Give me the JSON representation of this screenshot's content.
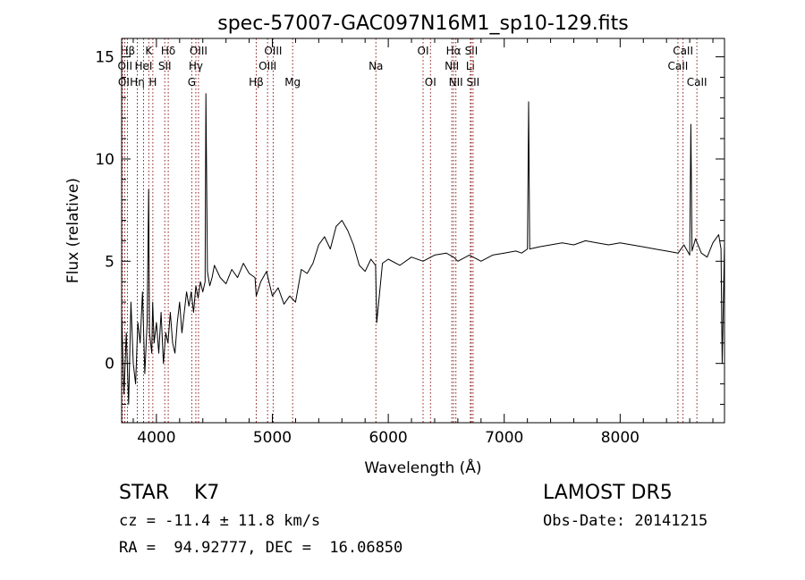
{
  "chart_data": {
    "type": "line",
    "title": "spec-57007-GAC097N16M1_sp10-129.fits",
    "xlabel": "Wavelength (Å)",
    "ylabel": "Flux (relative)",
    "xlim": [
      3700,
      8900
    ],
    "ylim": [
      -2.9,
      15.9
    ],
    "x_ticks": [
      4000,
      5000,
      6000,
      7000,
      8000
    ],
    "y_ticks": [
      0,
      5,
      10,
      15
    ],
    "grid": false,
    "series": [
      {
        "line_color": "#000000",
        "x": [
          3700,
          3720,
          3740,
          3760,
          3780,
          3800,
          3820,
          3840,
          3860,
          3880,
          3900,
          3920,
          3933,
          3940,
          3960,
          3968,
          3980,
          4000,
          4020,
          4040,
          4060,
          4080,
          4100,
          4120,
          4140,
          4160,
          4180,
          4200,
          4220,
          4240,
          4260,
          4280,
          4300,
          4320,
          4340,
          4360,
          4380,
          4400,
          4420,
          4427,
          4440,
          4460,
          4480,
          4500,
          4550,
          4600,
          4650,
          4700,
          4750,
          4800,
          4850,
          4861,
          4900,
          4950,
          5000,
          5050,
          5100,
          5150,
          5200,
          5250,
          5300,
          5350,
          5400,
          5450,
          5500,
          5550,
          5600,
          5650,
          5700,
          5750,
          5800,
          5850,
          5890,
          5900,
          5950,
          6000,
          6100,
          6200,
          6300,
          6400,
          6500,
          6563,
          6600,
          6700,
          6800,
          6900,
          7000,
          7100,
          7150,
          7200,
          7210,
          7220,
          7300,
          7400,
          7500,
          7600,
          7700,
          7800,
          7900,
          8000,
          8100,
          8200,
          8300,
          8400,
          8500,
          8550,
          8600,
          8610,
          8620,
          8650,
          8700,
          8750,
          8800,
          8850,
          8870,
          8880,
          8900
        ],
        "y": [
          2.5,
          -1.5,
          1.5,
          -2.0,
          3.0,
          0.0,
          -1.0,
          2.0,
          1.0,
          3.5,
          -0.5,
          2.0,
          8.5,
          1.5,
          0.5,
          3.0,
          1.0,
          2.0,
          0.5,
          2.5,
          0.0,
          1.5,
          1.0,
          2.5,
          1.0,
          0.5,
          2.0,
          3.0,
          1.5,
          2.5,
          3.5,
          2.8,
          3.5,
          2.5,
          3.8,
          3.2,
          4.0,
          3.5,
          4.0,
          13.2,
          4.5,
          3.8,
          4.2,
          4.8,
          4.2,
          3.9,
          4.6,
          4.2,
          4.9,
          4.4,
          4.2,
          3.3,
          4.0,
          4.5,
          3.3,
          3.7,
          2.9,
          3.3,
          3.0,
          4.6,
          4.4,
          4.9,
          5.8,
          6.2,
          5.6,
          6.7,
          7.0,
          6.5,
          5.8,
          4.8,
          4.5,
          5.1,
          4.8,
          2.0,
          4.9,
          5.1,
          4.8,
          5.2,
          5.0,
          5.3,
          5.4,
          5.2,
          5.0,
          5.3,
          5.0,
          5.3,
          5.4,
          5.5,
          5.4,
          5.6,
          12.8,
          5.6,
          5.7,
          5.8,
          5.9,
          5.8,
          6.0,
          5.9,
          5.8,
          5.9,
          5.8,
          5.7,
          5.6,
          5.5,
          5.4,
          5.8,
          5.3,
          11.7,
          5.5,
          6.1,
          5.4,
          5.2,
          5.9,
          6.3,
          5.6,
          0.0,
          5.9
        ]
      }
    ],
    "line_markers": [
      {
        "label": "Hβ",
        "x": 3750,
        "row": 0,
        "label_side": "right"
      },
      {
        "label": "OII",
        "x": 3727,
        "row": 1,
        "label_side": "right"
      },
      {
        "label": "OI",
        "x": 3707,
        "row": 2,
        "label_side": "left"
      },
      {
        "label": "Hη",
        "x": 3835,
        "row": 2,
        "label_side": "center"
      },
      {
        "label": "HeI",
        "x": 3889,
        "row": 1,
        "label_side": "center"
      },
      {
        "label": "K",
        "x": 3934,
        "row": 0,
        "label_side": "center"
      },
      {
        "label": "H",
        "x": 3969,
        "row": 2,
        "label_side": "center"
      },
      {
        "label": "Hδ",
        "x": 4102,
        "row": 0,
        "label_side": "center"
      },
      {
        "label": "SII",
        "x": 4072,
        "row": 1,
        "label_side": "center"
      },
      {
        "label": "OIII",
        "x": 4363,
        "row": 0,
        "label_side": "center"
      },
      {
        "label": "Hγ",
        "x": 4340,
        "row": 1,
        "label_side": "center"
      },
      {
        "label": "G",
        "x": 4305,
        "row": 2,
        "label_side": "center"
      },
      {
        "label": "Hβ",
        "x": 4861,
        "row": 2,
        "label_side": "center"
      },
      {
        "label": "OIII",
        "x": 5007,
        "row": 0,
        "label_side": "center"
      },
      {
        "label": "OIII",
        "x": 4959,
        "row": 1,
        "label_side": "center"
      },
      {
        "label": "Mg",
        "x": 5175,
        "row": 2,
        "label_side": "center"
      },
      {
        "label": "Na",
        "x": 5893,
        "row": 1,
        "label_side": "center"
      },
      {
        "label": "OI",
        "x": 6300,
        "row": 0,
        "label_side": "center"
      },
      {
        "label": "OI",
        "x": 6364,
        "row": 2,
        "label_side": "center"
      },
      {
        "label": "Hα",
        "x": 6563,
        "row": 0,
        "label_side": "center"
      },
      {
        "label": "NII",
        "x": 6548,
        "row": 1,
        "label_side": "center"
      },
      {
        "label": "NII",
        "x": 6583,
        "row": 2,
        "label_side": "center"
      },
      {
        "label": "SII",
        "x": 6716,
        "row": 0,
        "label_side": "center"
      },
      {
        "label": "Li",
        "x": 6708,
        "row": 1,
        "label_side": "center"
      },
      {
        "label": "SII",
        "x": 6731,
        "row": 2,
        "label_side": "center"
      },
      {
        "label": "CaII",
        "x": 8542,
        "row": 0,
        "label_side": "center"
      },
      {
        "label": "CaII",
        "x": 8498,
        "row": 1,
        "label_side": "center"
      },
      {
        "label": "CaII",
        "x": 8662,
        "row": 2,
        "label_side": "center"
      }
    ],
    "marker_color": "#8b1a1a"
  },
  "info": {
    "class_text": "STAR    K7",
    "survey_text": "LAMOST DR5",
    "cz_text": "cz = -11.4 ± 11.8 km/s",
    "obs_date_text": "Obs-Date: 20141215",
    "radec_text": "RA =  94.92777, DEC =  16.06850"
  }
}
